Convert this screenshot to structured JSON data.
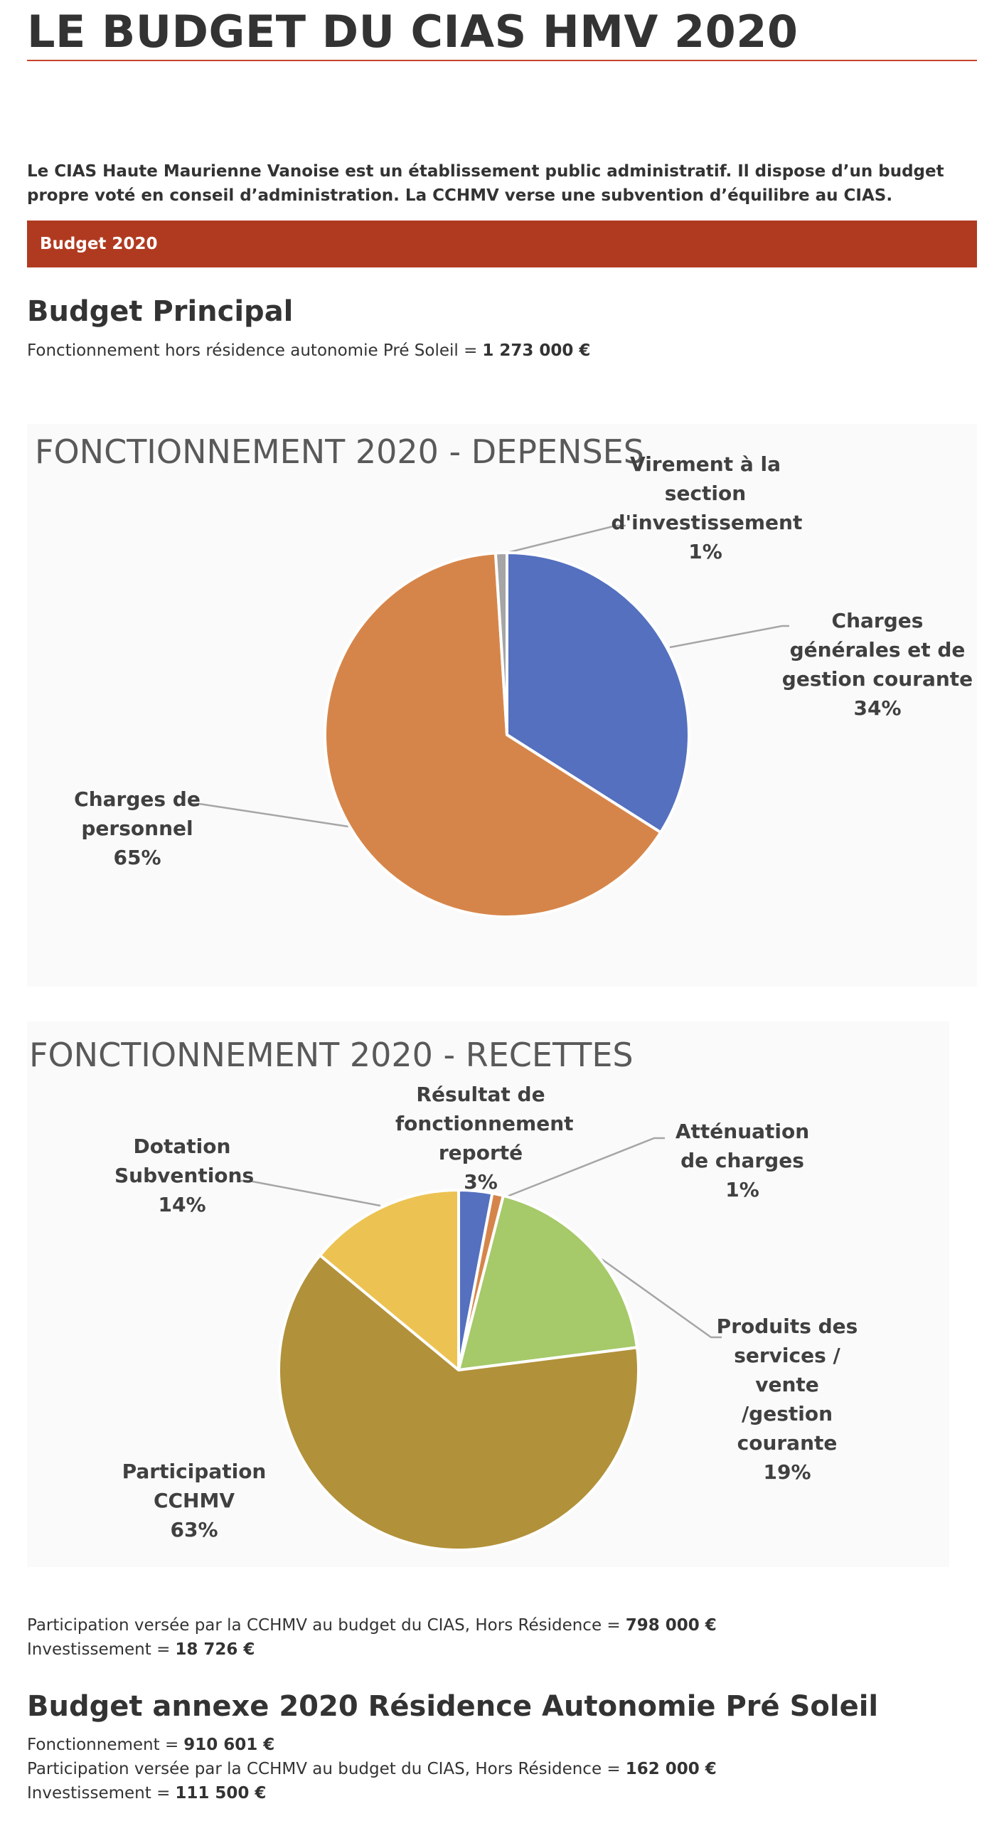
{
  "header": {
    "title": "LE BUDGET DU CIAS HMV 2020"
  },
  "intro": "Le CIAS Haute Maurienne Vanoise est un établissement public administratif. Il dispose d’un budget propre voté en conseil d’administration. La CCHMV verse une subvention d’équilibre au CIAS.",
  "banner": "Budget 2020",
  "budget_principal": {
    "heading": "Budget Principal",
    "lines": [
      {
        "label": "Fonctionnement hors résidence autonomie Pré Soleil =",
        "value": "1 273 000 €"
      }
    ],
    "lines_after": [
      {
        "label": "Participation versée par la CCHMV au budget du CIAS, Hors Résidence =",
        "value": "798 000 €"
      },
      {
        "label": "Investissement =",
        "value": "18 726 €"
      }
    ]
  },
  "budget_annexe": {
    "heading": "Budget annexe 2020 Résidence Autonomie Pré Soleil",
    "lines": [
      {
        "label": "Fonctionnement =",
        "value": "910 601 €"
      },
      {
        "label": "Participation versée par la CCHMV au budget du CIAS, Hors Résidence =",
        "value": "162 000 €"
      },
      {
        "label": "Investissement =",
        "value": "111 500 €"
      }
    ]
  },
  "chart_data": [
    {
      "type": "pie",
      "title": "FONCTIONNEMENT 2020 - DEPENSES",
      "categories": [
        "Charges générales et de gestion courante",
        "Charges de personnel",
        "Virement à la section d'investissement"
      ],
      "values": [
        34,
        65,
        1
      ],
      "value_labels": [
        "34%",
        "65%",
        "1%"
      ],
      "colors": [
        "#5470bf",
        "#d6854a",
        "#a5a5a5"
      ]
    },
    {
      "type": "pie",
      "title": "FONCTIONNEMENT 2020 - RECETTES",
      "categories": [
        "Résultat de fonctionnement reporté",
        "Atténuation de charges",
        "Produits des services / vente /gestion courante",
        "Participation CCHMV",
        "Dotation Subventions"
      ],
      "values": [
        3,
        1,
        19,
        63,
        14
      ],
      "value_labels": [
        "3%",
        "1%",
        "19%",
        "63%",
        "14%"
      ],
      "colors": [
        "#5470bf",
        "#d6854a",
        "#a6c96a",
        "#b1913a",
        "#ecc352"
      ]
    }
  ]
}
